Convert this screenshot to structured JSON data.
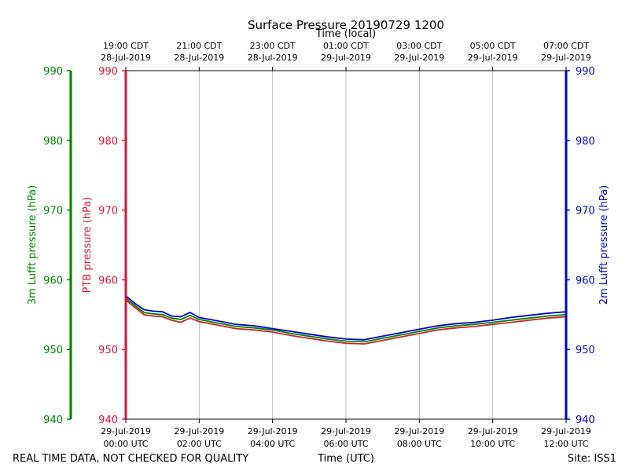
{
  "chart_data": {
    "type": "line",
    "title": "Surface Pressure 20190729 1200",
    "top_xlabel": "Time (local)",
    "xlabel": "Time (UTC)",
    "footer_left": "REAL TIME DATA, NOT CHECKED FOR QUALITY",
    "footer_right": "Site: ISS1",
    "xlim_hours_utc": [
      0,
      12
    ],
    "ylim": [
      940,
      990
    ],
    "yticks": [
      940,
      950,
      960,
      970,
      980,
      990
    ],
    "grid_x": true,
    "x_ticks": [
      {
        "hour": 0,
        "utc_date": "29-Jul-2019",
        "utc_time": "00:00 UTC",
        "local_time": "19:00 CDT",
        "local_date": "28-Jul-2019"
      },
      {
        "hour": 2,
        "utc_date": "29-Jul-2019",
        "utc_time": "02:00 UTC",
        "local_time": "21:00 CDT",
        "local_date": "28-Jul-2019"
      },
      {
        "hour": 4,
        "utc_date": "29-Jul-2019",
        "utc_time": "04:00 UTC",
        "local_time": "23:00 CDT",
        "local_date": "28-Jul-2019"
      },
      {
        "hour": 6,
        "utc_date": "29-Jul-2019",
        "utc_time": "06:00 UTC",
        "local_time": "01:00 CDT",
        "local_date": "29-Jul-2019"
      },
      {
        "hour": 8,
        "utc_date": "29-Jul-2019",
        "utc_time": "08:00 UTC",
        "local_time": "03:00 CDT",
        "local_date": "29-Jul-2019"
      },
      {
        "hour": 10,
        "utc_date": "29-Jul-2019",
        "utc_time": "10:00 UTC",
        "local_time": "05:00 CDT",
        "local_date": "29-Jul-2019"
      },
      {
        "hour": 12,
        "utc_date": "29-Jul-2019",
        "utc_time": "12:00 UTC",
        "local_time": "07:00 CDT",
        "local_date": "29-Jul-2019"
      }
    ],
    "axes": {
      "lufft3m": {
        "label": "3m Lufft pressure (hPa)",
        "color": "#008000"
      },
      "ptb": {
        "label": "PTB pressure (hPa)",
        "color": "#dc143c"
      },
      "lufft2m": {
        "label": "2m Lufft pressure (hPa)",
        "color": "#0000cd"
      }
    },
    "series": [
      {
        "name": "PTB pressure",
        "color": "#c0262b",
        "x": [
          0,
          0.25,
          0.5,
          0.75,
          1.0,
          1.25,
          1.5,
          1.75,
          2.0,
          2.5,
          3.0,
          3.5,
          4.0,
          4.5,
          5.0,
          5.5,
          6.0,
          6.5,
          7.0,
          7.5,
          8.0,
          8.5,
          9.0,
          9.5,
          10.0,
          10.5,
          11.0,
          11.5,
          12.0
        ],
        "values": [
          957.1,
          956.0,
          955.0,
          954.8,
          954.7,
          954.2,
          953.9,
          954.5,
          954.0,
          953.5,
          953.0,
          952.8,
          952.5,
          952.0,
          951.6,
          951.2,
          950.9,
          950.8,
          951.3,
          951.8,
          952.3,
          952.8,
          953.1,
          953.3,
          953.6,
          953.9,
          954.2,
          954.5,
          954.7
        ]
      },
      {
        "name": "3m Lufft pressure",
        "color": "#008000",
        "x": [
          0,
          0.25,
          0.5,
          0.75,
          1.0,
          1.25,
          1.5,
          1.75,
          2.0,
          2.5,
          3.0,
          3.5,
          4.0,
          4.5,
          5.0,
          5.5,
          6.0,
          6.5,
          7.0,
          7.5,
          8.0,
          8.5,
          9.0,
          9.5,
          10.0,
          10.5,
          11.0,
          11.5,
          12.0
        ],
        "values": [
          957.4,
          956.3,
          955.3,
          955.1,
          955.0,
          954.5,
          954.3,
          954.9,
          954.3,
          953.8,
          953.3,
          953.1,
          952.8,
          952.3,
          951.9,
          951.5,
          951.2,
          951.1,
          951.6,
          952.1,
          952.6,
          953.1,
          953.4,
          953.6,
          953.9,
          954.2,
          954.5,
          954.8,
          955.0
        ]
      },
      {
        "name": "2m Lufft pressure",
        "color": "#0000cd",
        "x": [
          0,
          0.25,
          0.5,
          0.75,
          1.0,
          1.25,
          1.5,
          1.75,
          2.0,
          2.5,
          3.0,
          3.5,
          4.0,
          4.5,
          5.0,
          5.5,
          6.0,
          6.5,
          7.0,
          7.5,
          8.0,
          8.5,
          9.0,
          9.5,
          10.0,
          10.5,
          11.0,
          11.5,
          12.0
        ],
        "values": [
          957.7,
          956.6,
          955.7,
          955.5,
          955.4,
          954.8,
          954.7,
          955.3,
          954.6,
          954.1,
          953.6,
          953.4,
          953.0,
          952.6,
          952.2,
          951.8,
          951.5,
          951.4,
          951.9,
          952.4,
          952.9,
          953.4,
          953.7,
          953.9,
          954.2,
          954.6,
          954.9,
          955.2,
          955.4
        ]
      }
    ]
  }
}
